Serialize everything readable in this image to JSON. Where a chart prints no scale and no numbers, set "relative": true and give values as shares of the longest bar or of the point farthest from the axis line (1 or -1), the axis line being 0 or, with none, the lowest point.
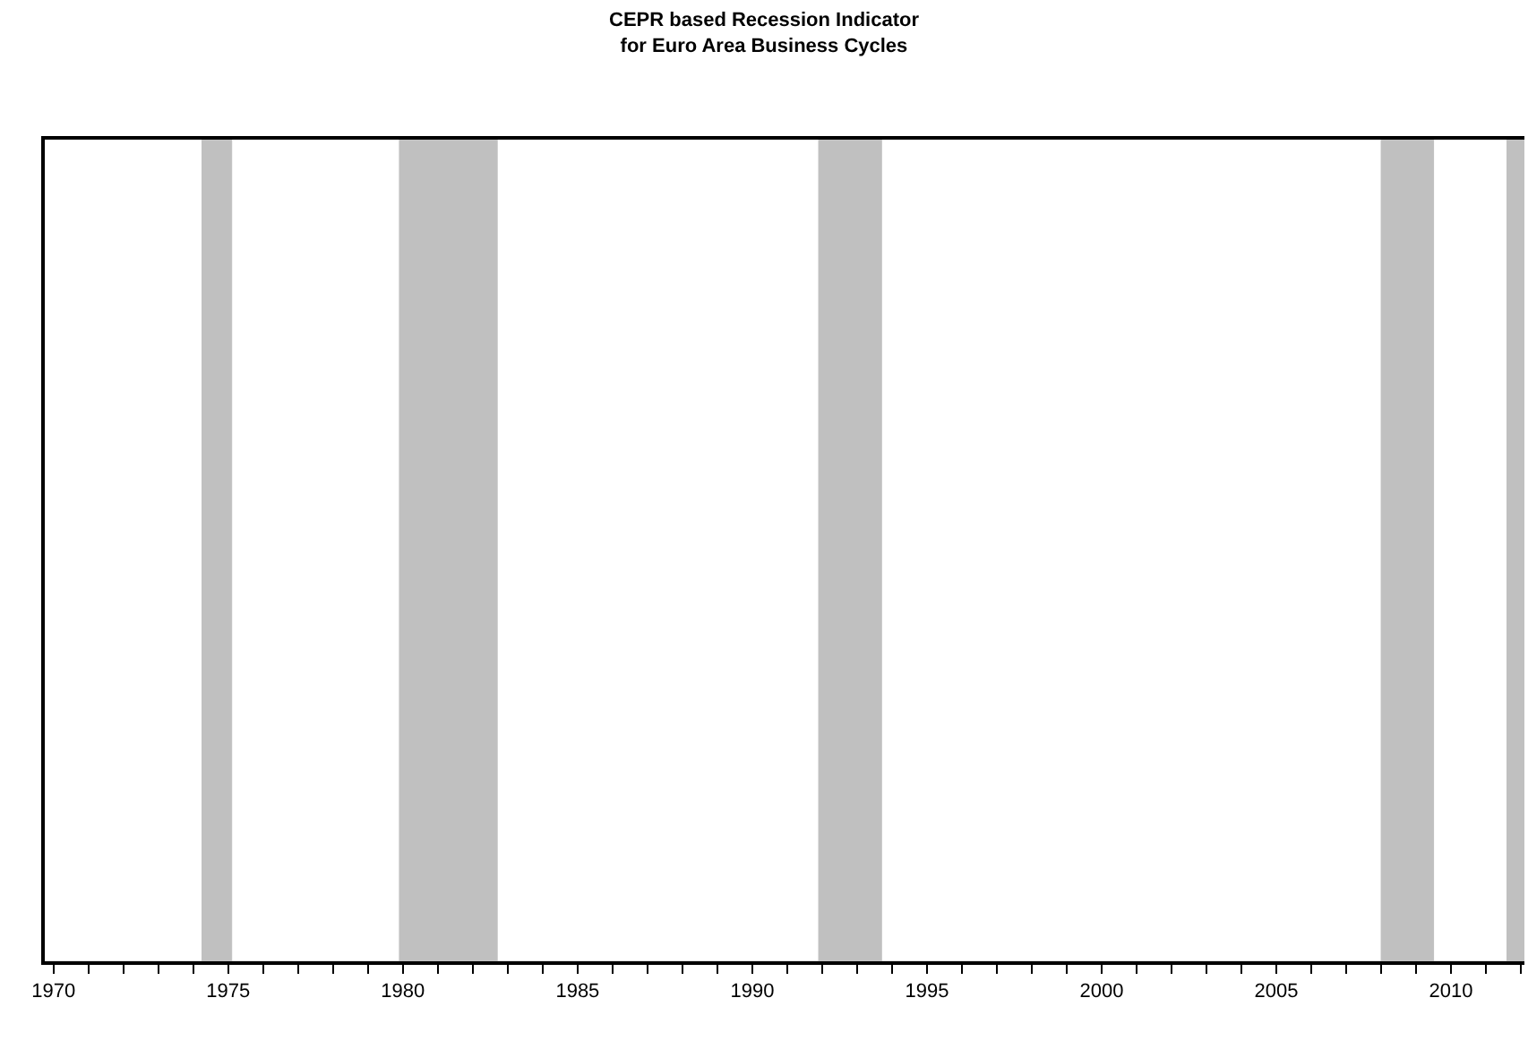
{
  "chart_data": {
    "type": "area",
    "title": "CEPR based Recession Indicator\nfor Euro Area Business Cycles",
    "relative": true,
    "x": [
      1969.75,
      1974.25,
      1974.25,
      1975.1,
      1975.1,
      1979.9,
      1979.9,
      1982.7,
      1982.7,
      1991.9,
      1991.9,
      1993.7,
      1993.7,
      2008.0,
      2008.0,
      2009.5,
      2009.5,
      2011.6,
      2011.6,
      2012.1
    ],
    "series": [
      {
        "color": "#c0c0c0",
        "values": [
          0,
          0,
          1,
          1,
          0,
          0,
          1,
          1,
          0,
          0,
          1,
          1,
          0,
          0,
          1,
          1,
          0,
          0,
          1,
          1
        ]
      }
    ],
    "xlim": [
      1969.75,
      2012.1
    ],
    "xticks": [
      1970,
      {
        "value": 1971,
        "label": null
      },
      {
        "value": 1972,
        "label": null
      },
      {
        "value": 1973,
        "label": null
      },
      {
        "value": 1974,
        "label": null
      },
      1975,
      {
        "value": 1976,
        "label": null
      },
      {
        "value": 1977,
        "label": null
      },
      {
        "value": 1978,
        "label": null
      },
      {
        "value": 1979,
        "label": null
      },
      1980,
      {
        "value": 1981,
        "label": null
      },
      {
        "value": 1982,
        "label": null
      },
      {
        "value": 1983,
        "label": null
      },
      {
        "value": 1984,
        "label": null
      },
      1985,
      {
        "value": 1986,
        "label": null
      },
      {
        "value": 1987,
        "label": null
      },
      {
        "value": 1988,
        "label": null
      },
      {
        "value": 1989,
        "label": null
      },
      1990,
      {
        "value": 1991,
        "label": null
      },
      {
        "value": 1992,
        "label": null
      },
      {
        "value": 1993,
        "label": null
      },
      {
        "value": 1994,
        "label": null
      },
      1995,
      {
        "value": 1996,
        "label": null
      },
      {
        "value": 1997,
        "label": null
      },
      {
        "value": 1998,
        "label": null
      },
      {
        "value": 1999,
        "label": null
      },
      2000,
      {
        "value": 2001,
        "label": null
      },
      {
        "value": 2002,
        "label": null
      },
      {
        "value": 2003,
        "label": null
      },
      {
        "value": 2004,
        "label": null
      },
      2005,
      {
        "value": 2006,
        "label": null
      },
      {
        "value": 2007,
        "label": null
      },
      {
        "value": 2008,
        "label": null
      },
      {
        "value": 2009,
        "label": null
      },
      2010,
      {
        "value": 2011,
        "label": null
      },
      {
        "value": 2012,
        "label": null
      }
    ]
  }
}
